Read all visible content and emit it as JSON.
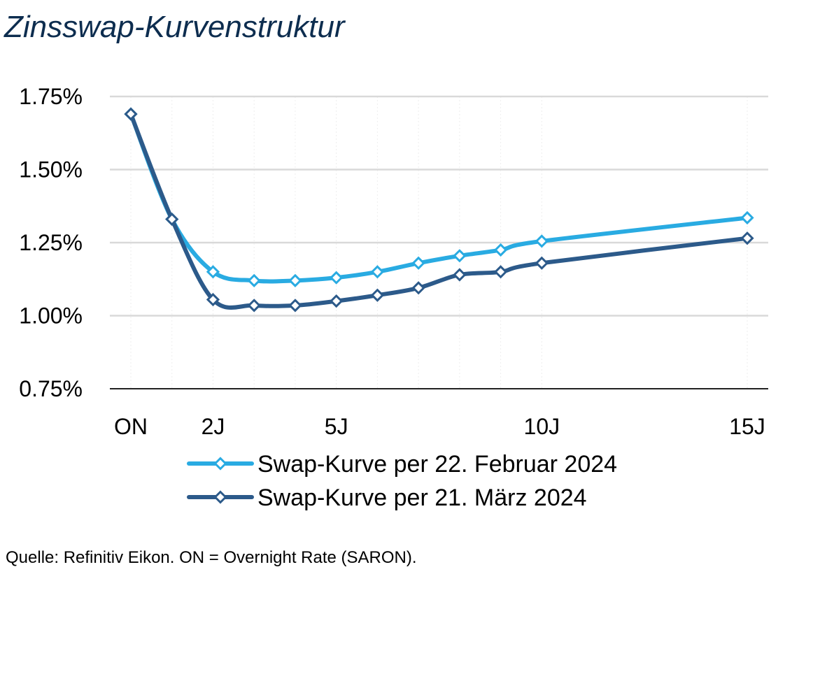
{
  "chart_data": {
    "type": "line",
    "title": "Zinsswap-Kurvenstruktur",
    "x": [
      0,
      1,
      2,
      3,
      4,
      5,
      6,
      7,
      8,
      9,
      10,
      15
    ],
    "x_tick_labels": [
      {
        "x": 0,
        "label": "ON"
      },
      {
        "x": 2,
        "label": "2J"
      },
      {
        "x": 5,
        "label": "5J"
      },
      {
        "x": 10,
        "label": "10J"
      },
      {
        "x": 15,
        "label": "15J"
      }
    ],
    "y_ticks": [
      0.75,
      1.0,
      1.25,
      1.5,
      1.75
    ],
    "y_tick_labels": [
      "0.75%",
      "1.00%",
      "1.25%",
      "1.50%",
      "1.75%"
    ],
    "ylim": [
      0.75,
      1.75
    ],
    "xlim": [
      0,
      15
    ],
    "grid": "horizontal",
    "legend_position": "bottom",
    "series": [
      {
        "name": "Swap-Kurve per 22. Februar 2024",
        "color": "#29abe2",
        "values": [
          1.69,
          1.33,
          1.15,
          1.12,
          1.12,
          1.13,
          1.15,
          1.18,
          1.205,
          1.225,
          1.255,
          1.335
        ]
      },
      {
        "name": "Swap-Kurve per 21. März 2024",
        "color": "#2c5a8a",
        "values": [
          1.69,
          1.33,
          1.055,
          1.035,
          1.035,
          1.05,
          1.07,
          1.095,
          1.14,
          1.15,
          1.18,
          1.265
        ]
      }
    ]
  },
  "source": "Quelle: Refinitiv Eikon. ON = Overnight Rate (SARON)."
}
